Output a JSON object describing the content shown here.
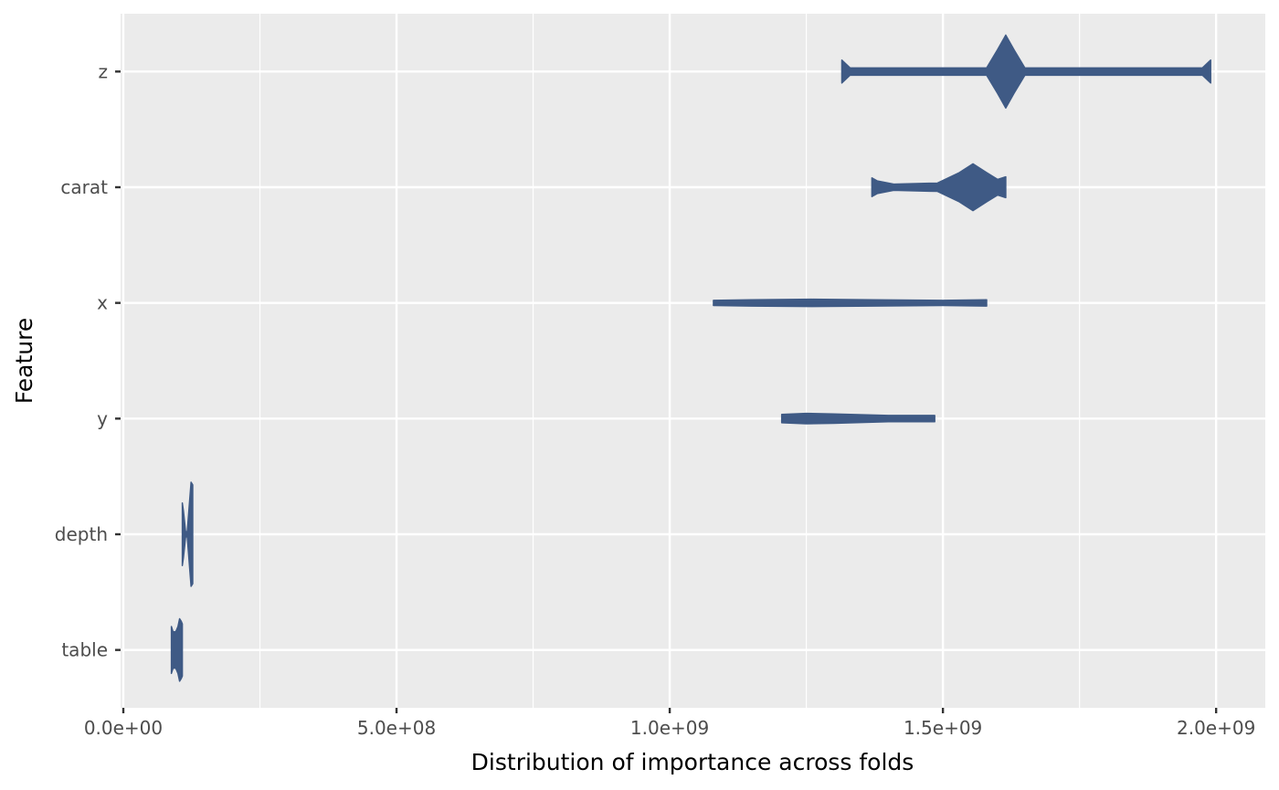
{
  "chart_data": {
    "type": "violin",
    "title": "",
    "xlabel": "Distribution of importance across folds",
    "ylabel": "Feature",
    "xlim": [
      -5000000,
      2090000000
    ],
    "x_ticks": [
      {
        "value": 0,
        "label": "0.0e+00"
      },
      {
        "value": 500000000,
        "label": "5.0e+08"
      },
      {
        "value": 1000000000,
        "label": "1.0e+09"
      },
      {
        "value": 1500000000,
        "label": "1.5e+09"
      },
      {
        "value": 2000000000,
        "label": "2.0e+09"
      }
    ],
    "x_minor_ticks": [
      250000000,
      750000000,
      1250000000,
      1750000000
    ],
    "categories": [
      "z",
      "carat",
      "x",
      "y",
      "depth",
      "table"
    ],
    "grid": true,
    "legend": "none",
    "fill_color": "#3f5a85",
    "panel_color": "#ebebeb",
    "violins": [
      {
        "name": "z",
        "min": 1315000000,
        "max": 1990000000,
        "profile": [
          [
            1315000000,
            0.22
          ],
          [
            1330000000,
            0.07
          ],
          [
            1580000000,
            0.07
          ],
          [
            1600000000,
            0.42
          ],
          [
            1615000000,
            0.7
          ],
          [
            1630000000,
            0.42
          ],
          [
            1650000000,
            0.07
          ],
          [
            1975000000,
            0.07
          ],
          [
            1990000000,
            0.22
          ]
        ]
      },
      {
        "name": "carat",
        "min": 1370000000,
        "max": 1615000000,
        "profile": [
          [
            1370000000,
            0.18
          ],
          [
            1380000000,
            0.12
          ],
          [
            1410000000,
            0.06
          ],
          [
            1490000000,
            0.08
          ],
          [
            1530000000,
            0.28
          ],
          [
            1555000000,
            0.45
          ],
          [
            1580000000,
            0.28
          ],
          [
            1600000000,
            0.15
          ],
          [
            1615000000,
            0.2
          ]
        ]
      },
      {
        "name": "x",
        "min": 1080000000,
        "max": 1580000000,
        "profile": [
          [
            1080000000,
            0.05
          ],
          [
            1150000000,
            0.06
          ],
          [
            1260000000,
            0.07
          ],
          [
            1370000000,
            0.06
          ],
          [
            1500000000,
            0.05
          ],
          [
            1580000000,
            0.06
          ]
        ]
      },
      {
        "name": "y",
        "min": 1205000000,
        "max": 1485000000,
        "profile": [
          [
            1205000000,
            0.08
          ],
          [
            1250000000,
            0.1
          ],
          [
            1300000000,
            0.09
          ],
          [
            1400000000,
            0.06
          ],
          [
            1485000000,
            0.06
          ]
        ]
      },
      {
        "name": "depth",
        "min": 108000000,
        "max": 127000000,
        "profile": [
          [
            108000000,
            0.6
          ],
          [
            110000000,
            0.45
          ],
          [
            114000000,
            0.05
          ],
          [
            117000000,
            0.05
          ],
          [
            121000000,
            0.6
          ],
          [
            124000000,
            1.0
          ],
          [
            127000000,
            0.95
          ]
        ]
      },
      {
        "name": "table",
        "min": 88000000,
        "max": 108000000,
        "profile": [
          [
            88000000,
            0.45
          ],
          [
            91000000,
            0.35
          ],
          [
            96000000,
            0.35
          ],
          [
            100000000,
            0.45
          ],
          [
            103000000,
            0.6
          ],
          [
            106000000,
            0.55
          ],
          [
            108000000,
            0.5
          ]
        ]
      }
    ]
  }
}
